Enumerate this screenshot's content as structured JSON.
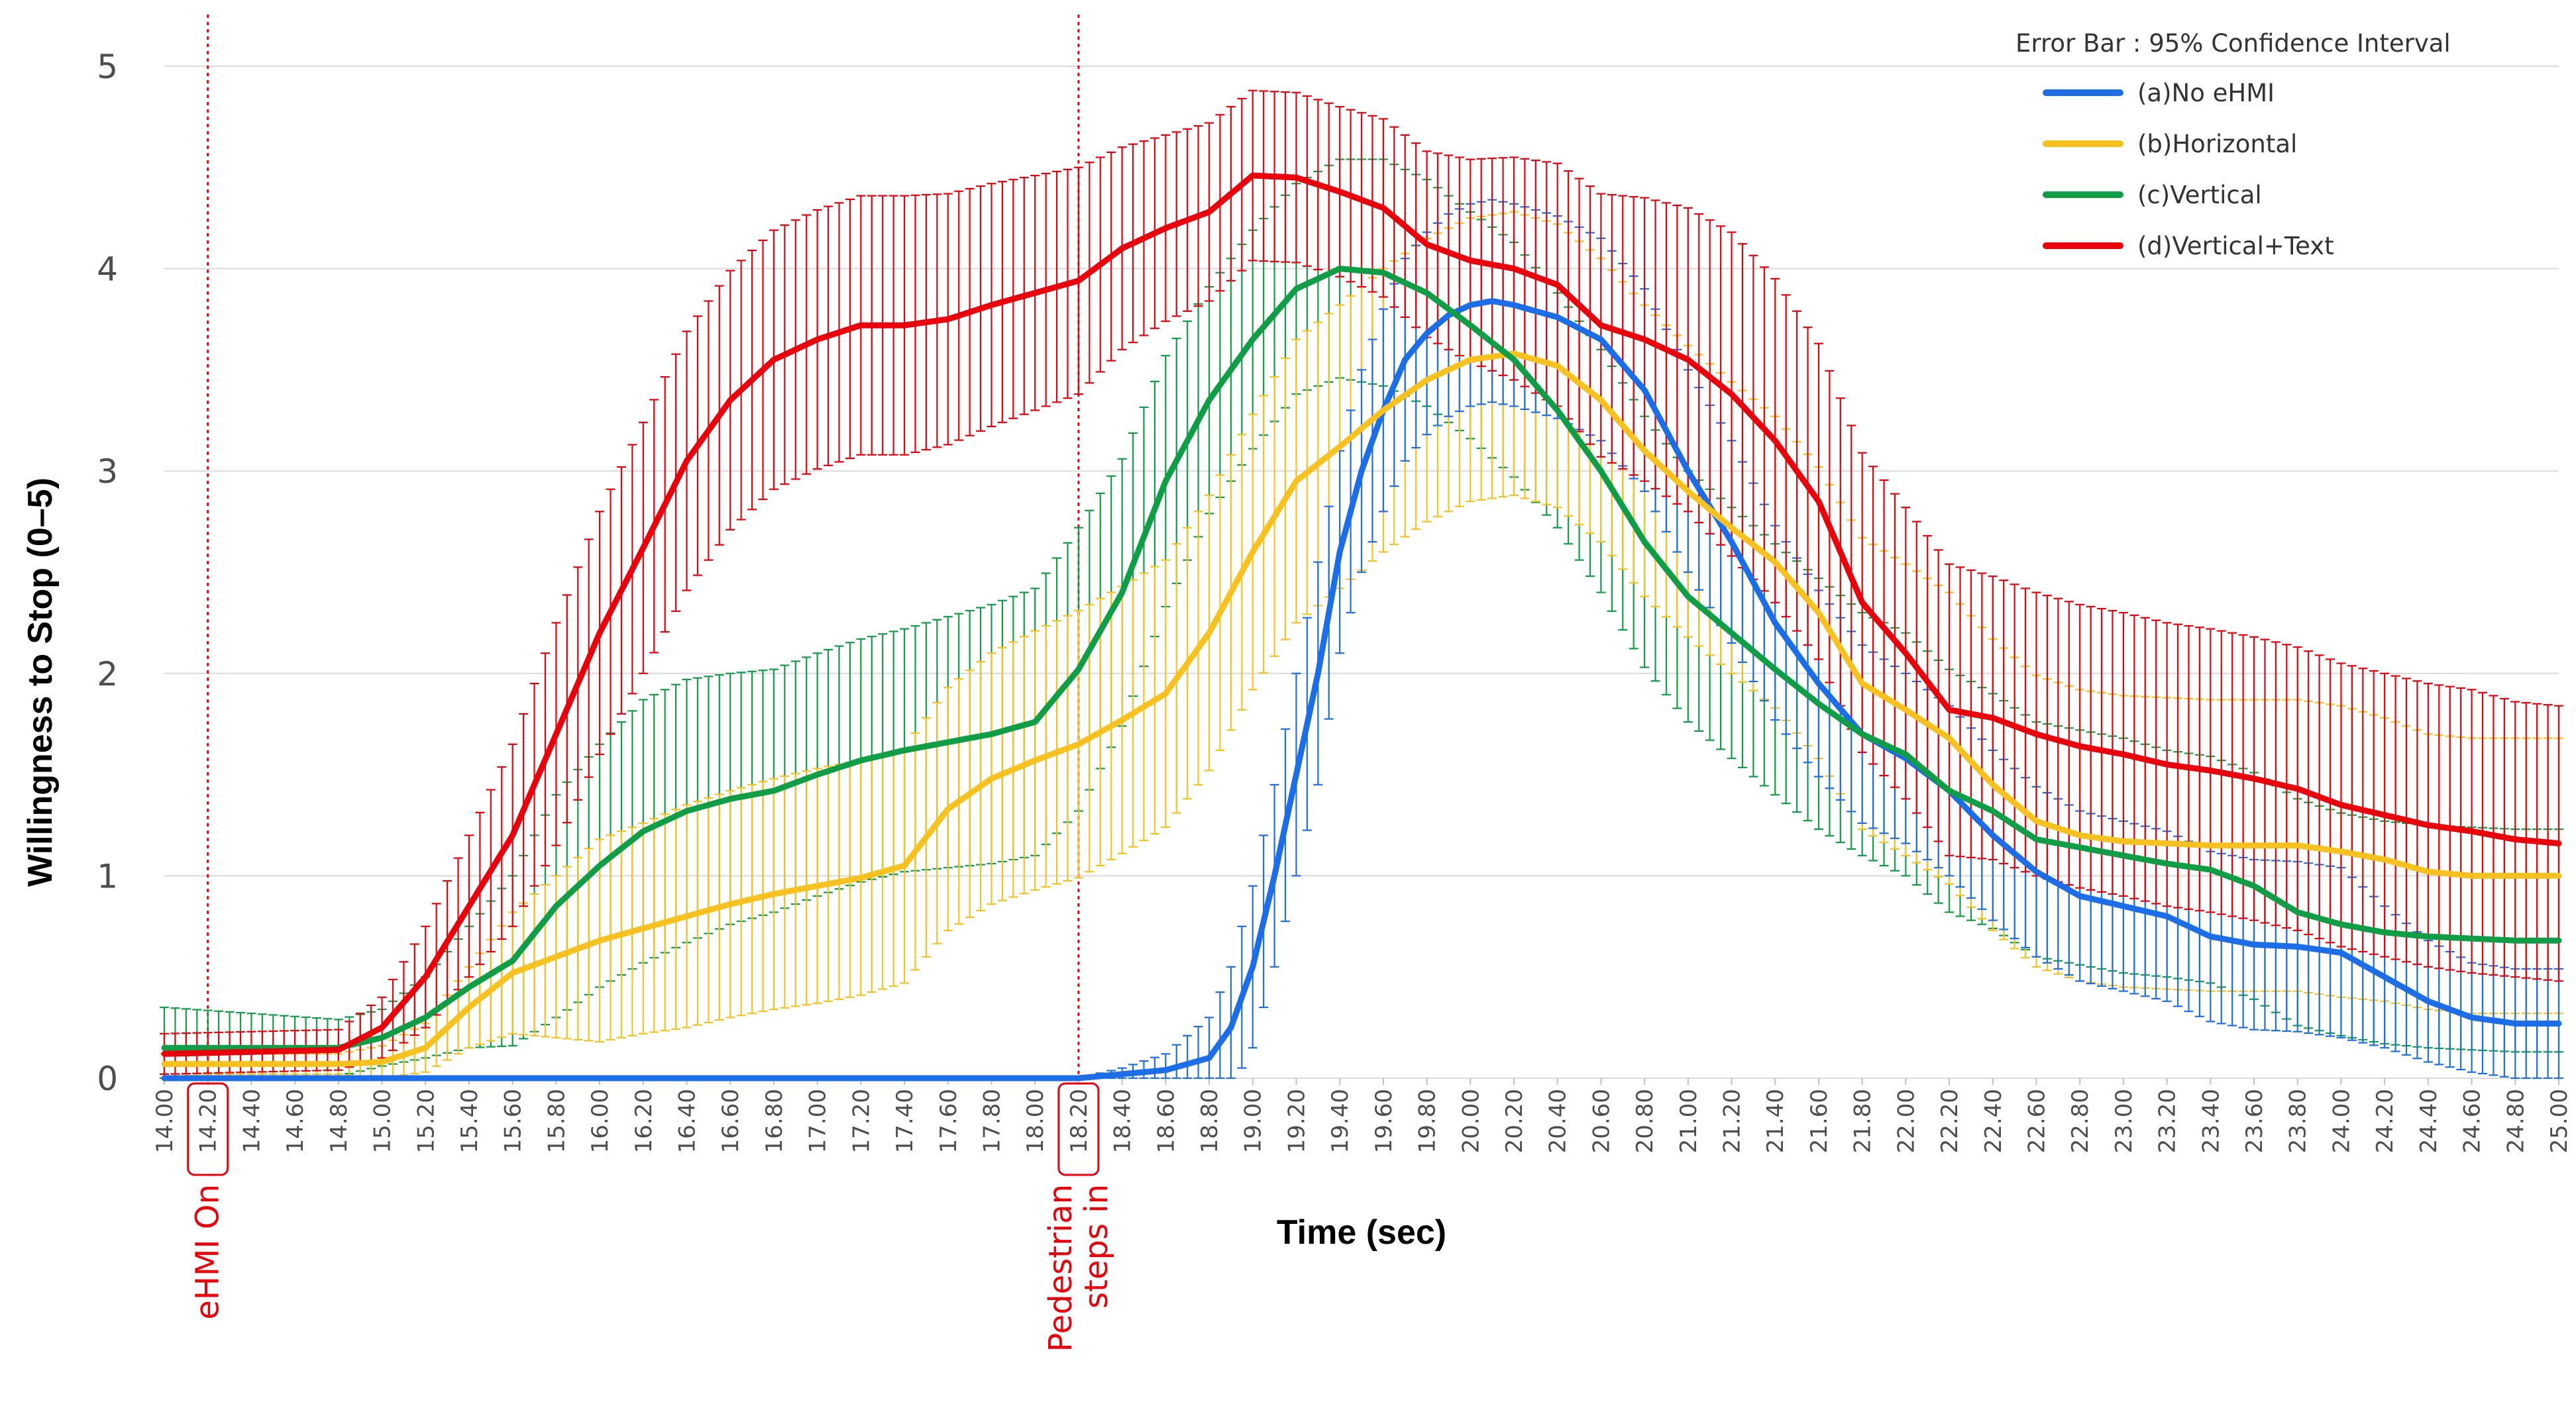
{
  "chart_data": {
    "type": "line",
    "xlabel": "Time (sec)",
    "ylabel": "Willingness to Stop (0–5)",
    "ylim": [
      0,
      5
    ],
    "xlim": [
      14.0,
      25.0
    ],
    "yticks": [
      "0",
      "1",
      "2",
      "3",
      "4",
      "5"
    ],
    "xticks": [
      "14.00",
      "14.20",
      "14.40",
      "14.60",
      "14.80",
      "15.00",
      "15.20",
      "15.40",
      "15.60",
      "15.80",
      "16.00",
      "16.20",
      "16.40",
      "16.60",
      "16.80",
      "17.00",
      "17.20",
      "17.40",
      "17.60",
      "17.80",
      "18.00",
      "18.20",
      "18.40",
      "18.60",
      "18.80",
      "19.00",
      "19.20",
      "19.40",
      "19.60",
      "19.80",
      "20.00",
      "20.20",
      "20.40",
      "20.60",
      "20.80",
      "21.00",
      "21.20",
      "21.40",
      "21.60",
      "21.80",
      "22.00",
      "22.20",
      "22.40",
      "22.60",
      "22.80",
      "23.00",
      "23.20",
      "23.40",
      "23.60",
      "23.80",
      "24.00",
      "24.20",
      "24.40",
      "24.60",
      "24.80",
      "25.00"
    ],
    "legend_title": "Error Bar : 95% Confidence Interval",
    "grid": "horizontal",
    "legend_position": "top-right",
    "events": [
      {
        "x": 14.2,
        "label": "eHMI On"
      },
      {
        "x": 18.2,
        "label_lines": [
          "Pedestrian",
          "steps in"
        ]
      }
    ],
    "series": [
      {
        "name": "(a)No eHMI",
        "color": "#1c6ee8",
        "x": [
          14.0,
          18.2,
          18.4,
          18.6,
          18.8,
          18.9,
          19.0,
          19.1,
          19.2,
          19.3,
          19.4,
          19.5,
          19.6,
          19.7,
          19.8,
          19.9,
          20.0,
          20.1,
          20.2,
          20.4,
          20.6,
          20.8,
          21.0,
          21.2,
          21.4,
          21.6,
          21.8,
          22.0,
          22.2,
          22.4,
          22.6,
          22.8,
          23.0,
          23.2,
          23.4,
          23.6,
          23.8,
          24.0,
          24.2,
          24.4,
          24.6,
          24.8,
          25.0
        ],
        "y": [
          0.0,
          0.0,
          0.02,
          0.04,
          0.1,
          0.25,
          0.55,
          1.0,
          1.5,
          2.0,
          2.6,
          3.0,
          3.3,
          3.55,
          3.68,
          3.77,
          3.82,
          3.84,
          3.82,
          3.76,
          3.65,
          3.4,
          3.0,
          2.65,
          2.25,
          1.95,
          1.7,
          1.58,
          1.42,
          1.2,
          1.02,
          0.9,
          0.85,
          0.8,
          0.7,
          0.66,
          0.65,
          0.62,
          0.5,
          0.38,
          0.3,
          0.27,
          0.27
        ],
        "ci": [
          0.0,
          0.0,
          0.03,
          0.08,
          0.2,
          0.3,
          0.4,
          0.45,
          0.5,
          0.55,
          0.5,
          0.5,
          0.5,
          0.5,
          0.5,
          0.5,
          0.5,
          0.5,
          0.5,
          0.5,
          0.5,
          0.5,
          0.5,
          0.5,
          0.48,
          0.46,
          0.44,
          0.42,
          0.42,
          0.42,
          0.42,
          0.42,
          0.42,
          0.42,
          0.42,
          0.42,
          0.42,
          0.42,
          0.35,
          0.3,
          0.27,
          0.27,
          0.27
        ]
      },
      {
        "name": "(b)Horizontal",
        "color": "#f7c11f",
        "x": [
          14.0,
          14.8,
          15.0,
          15.2,
          15.4,
          15.6,
          15.8,
          16.0,
          16.2,
          16.4,
          16.6,
          16.8,
          17.0,
          17.2,
          17.4,
          17.6,
          17.8,
          18.0,
          18.2,
          18.4,
          18.6,
          18.8,
          19.0,
          19.2,
          19.4,
          19.6,
          19.8,
          20.0,
          20.2,
          20.4,
          20.6,
          20.8,
          21.0,
          21.2,
          21.4,
          21.6,
          21.8,
          22.0,
          22.2,
          22.4,
          22.6,
          22.8,
          23.0,
          23.2,
          23.4,
          23.6,
          23.8,
          24.0,
          24.2,
          24.4,
          24.6,
          24.8,
          25.0
        ],
        "y": [
          0.07,
          0.07,
          0.08,
          0.15,
          0.35,
          0.52,
          0.6,
          0.68,
          0.74,
          0.8,
          0.86,
          0.91,
          0.95,
          0.99,
          1.05,
          1.33,
          1.48,
          1.57,
          1.65,
          1.77,
          1.9,
          2.2,
          2.6,
          2.95,
          3.12,
          3.3,
          3.45,
          3.55,
          3.58,
          3.52,
          3.35,
          3.1,
          2.9,
          2.72,
          2.55,
          2.3,
          1.95,
          1.82,
          1.68,
          1.45,
          1.27,
          1.2,
          1.17,
          1.16,
          1.15,
          1.15,
          1.15,
          1.12,
          1.08,
          1.02,
          1.0,
          1.0,
          1.0
        ],
        "ci": [
          0.05,
          0.05,
          0.08,
          0.12,
          0.2,
          0.3,
          0.4,
          0.5,
          0.52,
          0.55,
          0.56,
          0.57,
          0.58,
          0.58,
          0.58,
          0.6,
          0.62,
          0.64,
          0.66,
          0.66,
          0.66,
          0.68,
          0.68,
          0.7,
          0.7,
          0.7,
          0.7,
          0.7,
          0.7,
          0.7,
          0.7,
          0.72,
          0.72,
          0.72,
          0.72,
          0.72,
          0.72,
          0.72,
          0.72,
          0.72,
          0.72,
          0.72,
          0.72,
          0.72,
          0.72,
          0.72,
          0.72,
          0.72,
          0.7,
          0.68,
          0.68,
          0.68,
          0.68
        ]
      },
      {
        "name": "(c)Vertical",
        "color": "#0f9d45",
        "x": [
          14.0,
          14.8,
          15.0,
          15.2,
          15.4,
          15.6,
          15.8,
          16.0,
          16.2,
          16.4,
          16.6,
          16.8,
          17.0,
          17.2,
          17.4,
          17.6,
          17.8,
          18.0,
          18.2,
          18.4,
          18.6,
          18.8,
          19.0,
          19.2,
          19.4,
          19.6,
          19.8,
          20.0,
          20.2,
          20.4,
          20.6,
          20.8,
          21.0,
          21.2,
          21.4,
          21.6,
          21.8,
          22.0,
          22.2,
          22.4,
          22.6,
          22.8,
          23.0,
          23.2,
          23.4,
          23.6,
          23.8,
          24.0,
          24.2,
          24.4,
          24.6,
          24.8,
          25.0
        ],
        "y": [
          0.15,
          0.15,
          0.2,
          0.3,
          0.45,
          0.58,
          0.85,
          1.05,
          1.22,
          1.32,
          1.38,
          1.42,
          1.5,
          1.57,
          1.62,
          1.66,
          1.7,
          1.76,
          2.02,
          2.4,
          2.95,
          3.35,
          3.65,
          3.9,
          4.0,
          3.98,
          3.88,
          3.72,
          3.55,
          3.3,
          3.0,
          2.65,
          2.38,
          2.2,
          2.02,
          1.85,
          1.7,
          1.6,
          1.42,
          1.32,
          1.18,
          1.14,
          1.1,
          1.06,
          1.03,
          0.95,
          0.82,
          0.76,
          0.72,
          0.7,
          0.69,
          0.68,
          0.68
        ],
        "ci": [
          0.2,
          0.14,
          0.14,
          0.2,
          0.3,
          0.42,
          0.55,
          0.6,
          0.65,
          0.65,
          0.62,
          0.6,
          0.6,
          0.6,
          0.6,
          0.62,
          0.64,
          0.66,
          0.7,
          0.66,
          0.62,
          0.56,
          0.54,
          0.52,
          0.54,
          0.56,
          0.56,
          0.56,
          0.58,
          0.58,
          0.6,
          0.62,
          0.62,
          0.62,
          0.62,
          0.62,
          0.6,
          0.6,
          0.6,
          0.58,
          0.58,
          0.58,
          0.58,
          0.56,
          0.56,
          0.56,
          0.56,
          0.55,
          0.55,
          0.55,
          0.55,
          0.55,
          0.55
        ]
      },
      {
        "name": "(d)Vertical+Text",
        "color": "#e8000b",
        "x": [
          14.0,
          14.8,
          15.0,
          15.2,
          15.4,
          15.6,
          15.8,
          16.0,
          16.2,
          16.4,
          16.6,
          16.8,
          17.0,
          17.2,
          17.4,
          17.6,
          17.8,
          18.0,
          18.2,
          18.4,
          18.6,
          18.8,
          19.0,
          19.2,
          19.4,
          19.6,
          19.8,
          20.0,
          20.2,
          20.4,
          20.6,
          20.8,
          21.0,
          21.2,
          21.4,
          21.6,
          21.8,
          22.0,
          22.2,
          22.4,
          22.6,
          22.8,
          23.0,
          23.2,
          23.4,
          23.6,
          23.8,
          24.0,
          24.2,
          24.4,
          24.6,
          24.8,
          25.0
        ],
        "y": [
          0.12,
          0.14,
          0.25,
          0.5,
          0.85,
          1.2,
          1.7,
          2.2,
          2.62,
          3.05,
          3.35,
          3.55,
          3.65,
          3.72,
          3.72,
          3.75,
          3.82,
          3.88,
          3.94,
          4.1,
          4.2,
          4.28,
          4.46,
          4.45,
          4.38,
          4.3,
          4.12,
          4.04,
          4.0,
          3.92,
          3.72,
          3.65,
          3.55,
          3.38,
          3.15,
          2.85,
          2.35,
          2.1,
          1.82,
          1.78,
          1.7,
          1.64,
          1.6,
          1.55,
          1.52,
          1.48,
          1.43,
          1.35,
          1.3,
          1.25,
          1.22,
          1.18,
          1.16
        ],
        "ci": [
          0.1,
          0.1,
          0.15,
          0.25,
          0.35,
          0.45,
          0.55,
          0.6,
          0.62,
          0.64,
          0.64,
          0.64,
          0.64,
          0.64,
          0.64,
          0.62,
          0.6,
          0.58,
          0.56,
          0.5,
          0.46,
          0.44,
          0.42,
          0.42,
          0.42,
          0.44,
          0.46,
          0.5,
          0.55,
          0.6,
          0.65,
          0.7,
          0.75,
          0.8,
          0.8,
          0.78,
          0.74,
          0.72,
          0.72,
          0.7,
          0.7,
          0.7,
          0.7,
          0.7,
          0.7,
          0.7,
          0.7,
          0.7,
          0.7,
          0.7,
          0.7,
          0.68,
          0.68
        ]
      }
    ]
  }
}
